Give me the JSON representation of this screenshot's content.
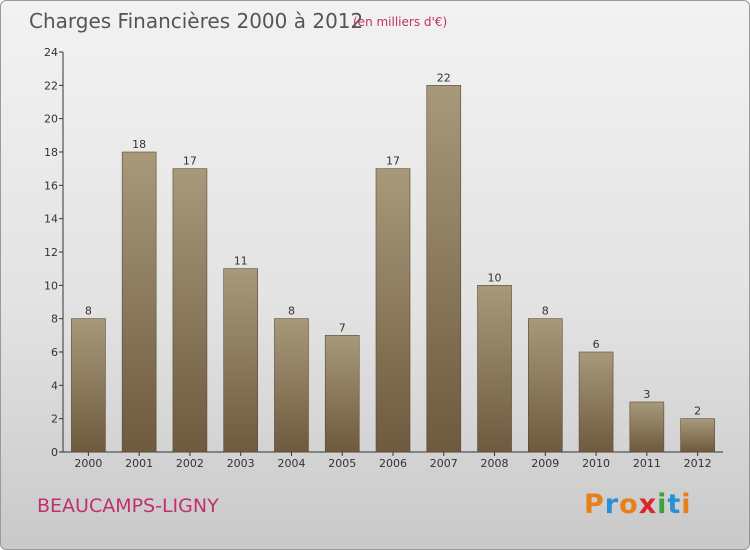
{
  "header": {
    "title": "Charges Financières 2000 à 2012",
    "subtitle": "(en milliers d'€)"
  },
  "footer": {
    "town": "BEAUCAMPS-LIGNY",
    "logo": {
      "text": "Proxiti",
      "colors": [
        "#e8801a",
        "#2a8fd6",
        "#e8801a",
        "#d8282e",
        "#3aa33a",
        "#2a8fd6",
        "#e8801a"
      ]
    }
  },
  "colors": {
    "bar_light": "#a8997b",
    "bar_dark": "#6e5a3e",
    "bar_border": "#5a4a32"
  },
  "chart_data": {
    "type": "bar",
    "title": "Charges Financières 2000 à 2012",
    "subtitle": "(en milliers d'€)",
    "categories": [
      "2000",
      "2001",
      "2002",
      "2003",
      "2004",
      "2005",
      "2006",
      "2007",
      "2008",
      "2009",
      "2010",
      "2011",
      "2012"
    ],
    "values": [
      8,
      18,
      17,
      11,
      8,
      7,
      17,
      22,
      10,
      8,
      6,
      3,
      2
    ],
    "ylim": [
      0,
      24
    ],
    "yticks": [
      0,
      2,
      4,
      6,
      8,
      10,
      12,
      14,
      16,
      18,
      20,
      22,
      24
    ],
    "grid": false,
    "data_labels": true
  }
}
